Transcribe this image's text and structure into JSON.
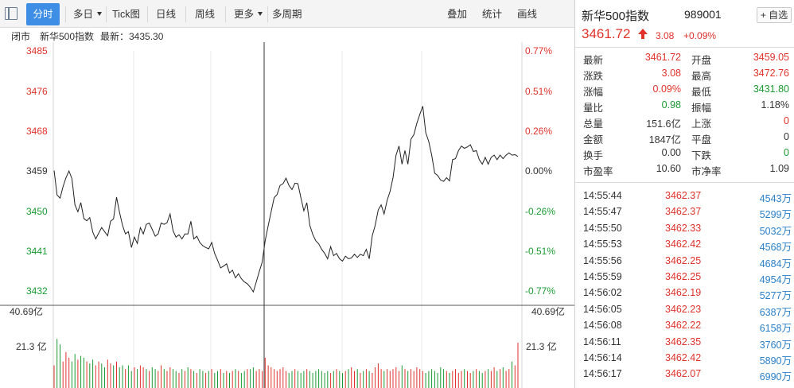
{
  "toolbar": {
    "tabs": [
      {
        "label": "分时",
        "active": true
      },
      {
        "label": "多日",
        "dropdown": true
      },
      {
        "label": "Tick图"
      },
      {
        "label": "日线"
      },
      {
        "label": "周线"
      },
      {
        "label": "更多",
        "dropdown": true
      },
      {
        "label": "多周期"
      }
    ],
    "right_tabs": [
      "叠加",
      "统计",
      "画线"
    ]
  },
  "infobar": {
    "status": "闭市",
    "name": "新华500指数",
    "latest_label": "最新：3435.30"
  },
  "colors": {
    "up": "#e0322b",
    "down": "#1a9a33",
    "neutral": "#333333",
    "accent": "#3e8ee6",
    "volume_text": "#2a7fc9"
  },
  "panel": {
    "name": "新华500指数",
    "code": "989001",
    "fav_label": "+ 自选",
    "price": "3461.72",
    "change": "3.08",
    "change_pct": "+0.09%",
    "stats": [
      {
        "l1": "最新",
        "v1": "3461.72",
        "c1": "red",
        "l2": "开盘",
        "v2": "3459.05",
        "c2": "red"
      },
      {
        "l1": "涨跌",
        "v1": "3.08",
        "c1": "red",
        "l2": "最高",
        "v2": "3472.76",
        "c2": "red"
      },
      {
        "l1": "涨幅",
        "v1": "0.09%",
        "c1": "red",
        "l2": "最低",
        "v2": "3431.80",
        "c2": "green"
      },
      {
        "l1": "量比",
        "v1": "0.98",
        "c1": "green",
        "l2": "振幅",
        "v2": "1.18%",
        "c2": "dark"
      },
      {
        "l1": "总量",
        "v1": "151.6亿",
        "c1": "dark",
        "l2": "上涨",
        "v2": "0",
        "c2": "red"
      },
      {
        "l1": "金额",
        "v1": "1847亿",
        "c1": "dark",
        "l2": "平盘",
        "v2": "0",
        "c2": "dark"
      },
      {
        "l1": "换手",
        "v1": "0.00",
        "c1": "dark",
        "l2": "下跌",
        "v2": "0",
        "c2": "green"
      },
      {
        "l1": "市盈率",
        "v1": "10.60",
        "c1": "dark",
        "l2": "市净率",
        "v2": "1.09",
        "c2": "dark"
      }
    ],
    "ticks": [
      {
        "time": "14:55:44",
        "price": "3462.37",
        "vol": "4543万"
      },
      {
        "time": "14:55:47",
        "price": "3462.37",
        "vol": "5299万"
      },
      {
        "time": "14:55:50",
        "price": "3462.33",
        "vol": "5032万"
      },
      {
        "time": "14:55:53",
        "price": "3462.42",
        "vol": "4568万"
      },
      {
        "time": "14:55:56",
        "price": "3462.25",
        "vol": "4684万"
      },
      {
        "time": "14:55:59",
        "price": "3462.25",
        "vol": "4954万"
      },
      {
        "time": "14:56:02",
        "price": "3462.19",
        "vol": "5277万"
      },
      {
        "time": "14:56:05",
        "price": "3462.23",
        "vol": "6387万"
      },
      {
        "time": "14:56:08",
        "price": "3462.22",
        "vol": "6158万"
      },
      {
        "time": "14:56:11",
        "price": "3462.35",
        "vol": "3760万"
      },
      {
        "time": "14:56:14",
        "price": "3462.42",
        "vol": "5890万"
      },
      {
        "time": "14:56:17",
        "price": "3462.07",
        "vol": "6990万"
      }
    ]
  },
  "chart_data": {
    "type": "line",
    "prev_close": 3458.64,
    "price_axis": {
      "left_ticks": [
        "3485",
        "3476",
        "3468",
        "3459",
        "3450",
        "3441",
        "3432"
      ],
      "right_ticks": [
        "0.77%",
        "0.51%",
        "0.26%",
        "0.00%",
        "-0.26%",
        "-0.51%",
        "-0.77%"
      ],
      "ylim": [
        3432,
        3485
      ],
      "grid": true
    },
    "volume_axis": {
      "left_ticks": [
        "40.69亿",
        "21.3 亿"
      ],
      "right_ticks": [
        "40.69亿",
        "21.3 亿"
      ],
      "ylim": [
        0,
        40.69
      ],
      "unit": "亿"
    },
    "crosshair_index": 65,
    "series": [
      {
        "values": [
          3458.6,
          3453.2,
          3452.5,
          3455.0,
          3457.0,
          3458.5,
          3456.8,
          3451.0,
          3449.5,
          3451.5,
          3448.0,
          3447.5,
          3448.2,
          3445.0,
          3443.5,
          3444.8,
          3446.0,
          3445.1,
          3444.2,
          3447.4,
          3447.9,
          3452.7,
          3449.4,
          3446.5,
          3444.6,
          3445.1,
          3441.6,
          3443.9,
          3442.5,
          3446.0,
          3444.6,
          3446.7,
          3447.0,
          3445.6,
          3444.1,
          3444.6,
          3447.0,
          3446.7,
          3447.1,
          3449.0,
          3445.3,
          3443.9,
          3444.4,
          3443.5,
          3444.6,
          3444.6,
          3447.4,
          3443.5,
          3444.1,
          3442.7,
          3442.0,
          3441.6,
          3441.3,
          3442.7,
          3440.3,
          3438.8,
          3437.1,
          3437.5,
          3438.0,
          3436.0,
          3436.6,
          3434.9,
          3435.8,
          3434.7,
          3434.0,
          3433.6,
          3432.8,
          3431.8,
          3434.0,
          3436.3,
          3438.4,
          3443.1,
          3446.4,
          3449.5,
          3452.6,
          3453.3,
          3455.3,
          3455.7,
          3456.9,
          3455.3,
          3454.4,
          3455.8,
          3455.7,
          3452.6,
          3449.7,
          3451.5,
          3446.5,
          3444.5,
          3443.1,
          3442.4,
          3441.2,
          3440.3,
          3439.1,
          3441.8,
          3439.8,
          3440.3,
          3439.1,
          3438.6,
          3439.7,
          3439.1,
          3439.3,
          3440.1,
          3439.4,
          3440.1,
          3439.8,
          3441.2,
          3439.1,
          3444.2,
          3446.5,
          3449.9,
          3451.0,
          3449.0,
          3452.0,
          3454.0,
          3457.0,
          3462.0,
          3464.0,
          3460.0,
          3463.0,
          3460.0,
          3465.5,
          3466.5,
          3469.0,
          3471.0,
          3472.8,
          3467.0,
          3465.0,
          3462.0,
          3458.0,
          3457.5,
          3456.5,
          3456.2,
          3457.0,
          3456.3,
          3461.0,
          3461.2,
          3463.0,
          3464.0,
          3463.5,
          3463.8,
          3464.3,
          3462.8,
          3463.0,
          3461.0,
          3460.0,
          3461.5,
          3460.0,
          3461.5,
          3462.0,
          3461.0,
          3462.0,
          3461.2,
          3462.0,
          3462.5,
          3462.0,
          3462.1,
          3461.7
        ]
      }
    ],
    "volumes": [
      12,
      26,
      23,
      14,
      19,
      16,
      14,
      18,
      15,
      17,
      16,
      14,
      13,
      15,
      12,
      14,
      13,
      11,
      15,
      13,
      12,
      14,
      11,
      12,
      10,
      12,
      9,
      11,
      10,
      12,
      11,
      10,
      9,
      11,
      10,
      9,
      12,
      10,
      9,
      11,
      10,
      9,
      8,
      10,
      9,
      11,
      10,
      9,
      8,
      10,
      9,
      8,
      9,
      10,
      8,
      9,
      10,
      8,
      9,
      8,
      9,
      10,
      9,
      8,
      9,
      10,
      10,
      11,
      9,
      10,
      9,
      16,
      12,
      11,
      10,
      9,
      10,
      11,
      9,
      8,
      9,
      10,
      9,
      8,
      9,
      10,
      9,
      8,
      9,
      10,
      9,
      8,
      9,
      8,
      9,
      10,
      9,
      8,
      9,
      10,
      11,
      9,
      10,
      8,
      9,
      10,
      9,
      8,
      11,
      13,
      10,
      9,
      10,
      9,
      10,
      11,
      9,
      12,
      10,
      9,
      10,
      9,
      11,
      10,
      9,
      8,
      9,
      10,
      9,
      8,
      11,
      10,
      9,
      8,
      9,
      10,
      8,
      9,
      10,
      9,
      8,
      9,
      10,
      9,
      8,
      9,
      10,
      9,
      11,
      9,
      10,
      11,
      9,
      10,
      14,
      12,
      24
    ],
    "volume_up": [
      1,
      0,
      0,
      1,
      1,
      1,
      0,
      0,
      1,
      0,
      0,
      1,
      0,
      0,
      1,
      1,
      0,
      0,
      1,
      1,
      0,
      1,
      0,
      0,
      1,
      0,
      0,
      1,
      0,
      1,
      1,
      0,
      1,
      0,
      0,
      1,
      1,
      0,
      1,
      1,
      0,
      0,
      1,
      0,
      1,
      0,
      1,
      0,
      1,
      0,
      0,
      1,
      0,
      1,
      0,
      0,
      1,
      0,
      1,
      0,
      1,
      0,
      1,
      0,
      0,
      1,
      0,
      0,
      1,
      1,
      1,
      1,
      1,
      1,
      1,
      1,
      1,
      1,
      1,
      0,
      0,
      1,
      0,
      0,
      0,
      1,
      0,
      0,
      0,
      0,
      0,
      0,
      0,
      1,
      0,
      1,
      0,
      0,
      1,
      0,
      1,
      1,
      0,
      1,
      0,
      1,
      0,
      1,
      1,
      1,
      1,
      0,
      1,
      1,
      1,
      1,
      1,
      0,
      1,
      0,
      1,
      1,
      1,
      1,
      1,
      0,
      0,
      0,
      0,
      0,
      0,
      0,
      1,
      0,
      1,
      1,
      1,
      1,
      0,
      1,
      1,
      0,
      1,
      0,
      0,
      1,
      0,
      1,
      1,
      0,
      1,
      0,
      1,
      1,
      0,
      1,
      1,
      0,
      1
    ]
  }
}
